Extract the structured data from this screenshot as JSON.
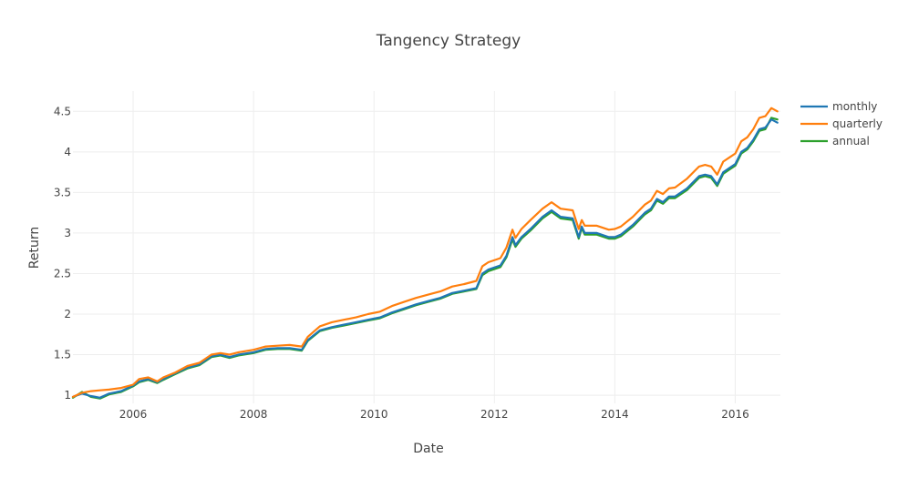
{
  "chart_data": {
    "type": "line",
    "title": "Tangency Strategy",
    "xlabel": "Date",
    "ylabel": "Return",
    "xlim": [
      2005.0,
      2016.75
    ],
    "ylim": [
      0.9,
      4.75
    ],
    "x_ticks": [
      2006,
      2008,
      2010,
      2012,
      2014,
      2016
    ],
    "x_tick_labels": [
      "2006",
      "2008",
      "2010",
      "2012",
      "2014",
      "2016"
    ],
    "y_ticks": [
      1,
      1.5,
      2,
      2.5,
      3,
      3.5,
      4,
      4.5
    ],
    "y_tick_labels": [
      "1",
      "1.5",
      "2",
      "2.5",
      "3",
      "3.5",
      "4",
      "4.5"
    ],
    "grid": true,
    "legend_position": "top-right",
    "x": [
      2005.0,
      2005.15,
      2005.3,
      2005.45,
      2005.6,
      2005.8,
      2006.0,
      2006.1,
      2006.25,
      2006.4,
      2006.5,
      2006.7,
      2006.9,
      2007.1,
      2007.3,
      2007.45,
      2007.6,
      2007.75,
      2008.0,
      2008.2,
      2008.4,
      2008.6,
      2008.8,
      2008.9,
      2009.1,
      2009.3,
      2009.5,
      2009.7,
      2009.9,
      2010.1,
      2010.3,
      2010.5,
      2010.7,
      2010.9,
      2011.1,
      2011.3,
      2011.5,
      2011.7,
      2011.8,
      2011.9,
      2012.1,
      2012.2,
      2012.3,
      2012.35,
      2012.45,
      2012.6,
      2012.8,
      2012.95,
      2013.1,
      2013.3,
      2013.4,
      2013.45,
      2013.5,
      2013.7,
      2013.9,
      2014.0,
      2014.1,
      2014.3,
      2014.5,
      2014.6,
      2014.7,
      2014.8,
      2014.9,
      2015.0,
      2015.2,
      2015.4,
      2015.5,
      2015.6,
      2015.7,
      2015.8,
      2015.9,
      2016.0,
      2016.1,
      2016.2,
      2016.3,
      2016.4,
      2016.5,
      2016.6,
      2016.7
    ],
    "series": [
      {
        "name": "monthly",
        "color": "#1f77b4",
        "values": [
          0.98,
          1.02,
          0.99,
          0.97,
          1.02,
          1.05,
          1.12,
          1.17,
          1.2,
          1.16,
          1.2,
          1.27,
          1.34,
          1.38,
          1.48,
          1.5,
          1.47,
          1.5,
          1.53,
          1.57,
          1.58,
          1.58,
          1.56,
          1.68,
          1.8,
          1.84,
          1.87,
          1.9,
          1.93,
          1.96,
          2.02,
          2.07,
          2.12,
          2.16,
          2.2,
          2.26,
          2.29,
          2.32,
          2.5,
          2.55,
          2.6,
          2.72,
          2.95,
          2.85,
          2.95,
          3.05,
          3.2,
          3.28,
          3.2,
          3.18,
          2.95,
          3.08,
          3.0,
          3.0,
          2.95,
          2.95,
          2.98,
          3.1,
          3.25,
          3.3,
          3.42,
          3.38,
          3.45,
          3.45,
          3.55,
          3.7,
          3.72,
          3.7,
          3.6,
          3.75,
          3.8,
          3.85,
          4.0,
          4.05,
          4.15,
          4.28,
          4.3,
          4.4,
          4.36
        ]
      },
      {
        "name": "quarterly",
        "color": "#ff7f0e",
        "values": [
          0.98,
          1.03,
          1.05,
          1.06,
          1.07,
          1.09,
          1.13,
          1.2,
          1.22,
          1.17,
          1.22,
          1.28,
          1.36,
          1.4,
          1.5,
          1.52,
          1.5,
          1.53,
          1.56,
          1.6,
          1.61,
          1.62,
          1.6,
          1.72,
          1.85,
          1.9,
          1.93,
          1.96,
          2.0,
          2.03,
          2.1,
          2.15,
          2.2,
          2.24,
          2.28,
          2.34,
          2.37,
          2.41,
          2.59,
          2.64,
          2.69,
          2.82,
          3.04,
          2.94,
          3.05,
          3.16,
          3.3,
          3.38,
          3.3,
          3.28,
          3.05,
          3.16,
          3.09,
          3.09,
          3.04,
          3.05,
          3.08,
          3.2,
          3.35,
          3.4,
          3.52,
          3.48,
          3.55,
          3.56,
          3.67,
          3.82,
          3.84,
          3.82,
          3.72,
          3.88,
          3.93,
          3.98,
          4.13,
          4.18,
          4.28,
          4.42,
          4.44,
          4.54,
          4.5
        ]
      },
      {
        "name": "annual",
        "color": "#2ca02c",
        "values": [
          0.97,
          1.04,
          0.98,
          0.96,
          1.01,
          1.04,
          1.11,
          1.16,
          1.19,
          1.15,
          1.19,
          1.26,
          1.33,
          1.37,
          1.47,
          1.49,
          1.46,
          1.49,
          1.52,
          1.56,
          1.57,
          1.57,
          1.55,
          1.67,
          1.79,
          1.83,
          1.86,
          1.89,
          1.92,
          1.95,
          2.01,
          2.06,
          2.11,
          2.15,
          2.19,
          2.25,
          2.28,
          2.31,
          2.48,
          2.53,
          2.58,
          2.7,
          2.92,
          2.83,
          2.93,
          3.03,
          3.18,
          3.26,
          3.18,
          3.16,
          2.93,
          3.06,
          2.98,
          2.98,
          2.93,
          2.93,
          2.96,
          3.08,
          3.23,
          3.28,
          3.4,
          3.36,
          3.43,
          3.43,
          3.53,
          3.68,
          3.7,
          3.68,
          3.58,
          3.73,
          3.78,
          3.83,
          3.98,
          4.03,
          4.13,
          4.26,
          4.28,
          4.42,
          4.4
        ]
      }
    ]
  }
}
